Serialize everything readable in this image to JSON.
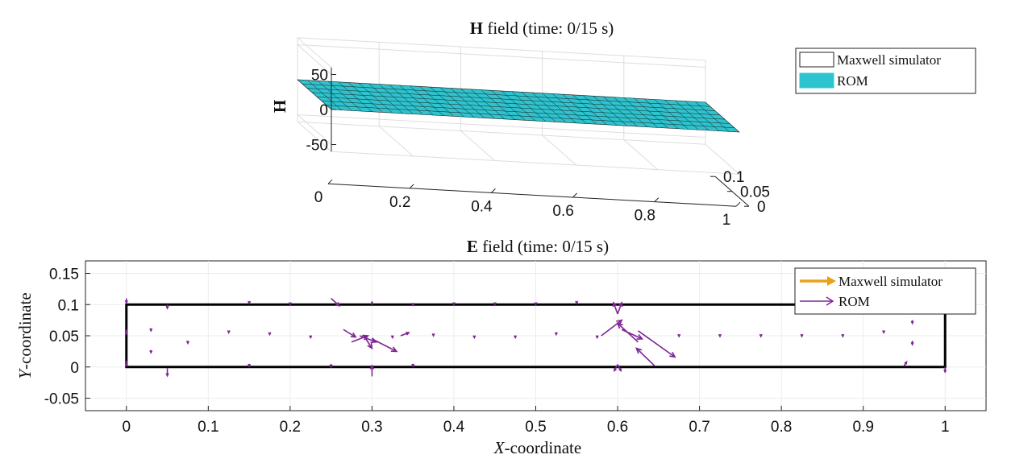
{
  "chart_data": [
    {
      "type": "surface",
      "title": {
        "bold": "H",
        "rest": " field (time: 0/15 s)"
      },
      "zlabel": "H",
      "x_ticks": [
        "0",
        "0.2",
        "0.4",
        "0.6",
        "0.8",
        "1"
      ],
      "y_ticks": [
        "0",
        "0.05",
        "0.1"
      ],
      "z_ticks": [
        "50",
        "0",
        "-50"
      ],
      "xlim": [
        0,
        1
      ],
      "ylim": [
        0,
        0.1
      ],
      "zlim": [
        -60,
        60
      ],
      "surface_value": 0,
      "legend": [
        "Maxwell simulator",
        "ROM"
      ],
      "legend_position": "top-right",
      "colors": {
        "rom_surface": "#2ec4cf",
        "grid": "#dddddd"
      }
    },
    {
      "type": "quiver",
      "title": {
        "bold": "E",
        "rest": " field (time: 0/15 s)"
      },
      "xlabel": {
        "italic": "X",
        "rest": "-coordinate"
      },
      "ylabel": {
        "italic": "Y",
        "rest": "-coordinate"
      },
      "x_ticks": [
        "0",
        "0.1",
        "0.2",
        "0.3",
        "0.4",
        "0.5",
        "0.6",
        "0.7",
        "0.8",
        "0.9",
        "1"
      ],
      "y_ticks": [
        "0.15",
        "0.1",
        "0.05",
        "0",
        "-0.05"
      ],
      "xlim": [
        -0.05,
        1.05
      ],
      "ylim": [
        -0.07,
        0.17
      ],
      "domain_box": {
        "x": [
          0,
          1
        ],
        "y": [
          0,
          0.1
        ]
      },
      "legend": [
        "Maxwell simulator",
        "ROM"
      ],
      "legend_position": "top-right",
      "colors": {
        "maxwell": "#e8a21a",
        "rom": "#7d2594"
      },
      "rom_arrows": [
        [
          0,
          0.11,
          0,
          -0.007
        ],
        [
          0,
          0.06,
          0,
          -0.007
        ],
        [
          0,
          0.01,
          0,
          -0.008
        ],
        [
          0.05,
          0.1,
          0,
          -0.006
        ],
        [
          0.05,
          -0.002,
          0,
          -0.012
        ],
        [
          0.03,
          0.062,
          0,
          -0.004
        ],
        [
          0.03,
          0.027,
          0,
          -0.004
        ],
        [
          0.075,
          0.042,
          0,
          -0.004
        ],
        [
          0.125,
          0.058,
          0,
          -0.003
        ],
        [
          0.15,
          0.105,
          0,
          -0.003
        ],
        [
          0.15,
          0.005,
          0,
          -0.004
        ],
        [
          0.175,
          0.055,
          0,
          -0.003
        ],
        [
          0.2,
          0.102,
          0,
          -0.002
        ],
        [
          0.225,
          0.05,
          0,
          -0.003
        ],
        [
          0.25,
          0.11,
          0.01,
          -0.012
        ],
        [
          0.25,
          0.005,
          0,
          -0.005
        ],
        [
          0.265,
          0.06,
          0.015,
          -0.012
        ],
        [
          0.275,
          0.04,
          0.02,
          0.01
        ],
        [
          0.285,
          0.05,
          0.02,
          -0.01
        ],
        [
          0.29,
          0.05,
          0.01,
          -0.02
        ],
        [
          0.3,
          0.045,
          0.03,
          -0.02
        ],
        [
          0.3,
          0.1,
          0,
          0.004
        ],
        [
          0.3,
          -0.015,
          0,
          0.017
        ],
        [
          0.325,
          0.05,
          0,
          -0.003
        ],
        [
          0.335,
          0.05,
          0.01,
          0.005
        ],
        [
          0.35,
          0.102,
          0,
          -0.003
        ],
        [
          0.35,
          0.005,
          0,
          -0.004
        ],
        [
          0.375,
          0.053,
          0,
          -0.003
        ],
        [
          0.4,
          0.102,
          0,
          -0.002
        ],
        [
          0.425,
          0.05,
          0,
          -0.003
        ],
        [
          0.45,
          0.102,
          0,
          -0.002
        ],
        [
          0.475,
          0.05,
          0,
          -0.003
        ],
        [
          0.5,
          0.102,
          0,
          -0.002
        ],
        [
          0.525,
          0.055,
          0,
          -0.003
        ],
        [
          0.55,
          0.105,
          0,
          -0.003
        ],
        [
          0.575,
          0.05,
          0,
          -0.003
        ],
        [
          0.58,
          0.05,
          0.025,
          0.025
        ],
        [
          0.6,
          0.085,
          -0.005,
          0.018
        ],
        [
          0.6,
          0.085,
          0.005,
          0.018
        ],
        [
          0.6,
          0.004,
          -0.004,
          -0.01
        ],
        [
          0.6,
          0.004,
          0.004,
          -0.01
        ],
        [
          0.605,
          0.06,
          0.025,
          -0.015
        ],
        [
          0.625,
          0.058,
          0.045,
          -0.042
        ],
        [
          0.645,
          0.002,
          -0.022,
          0.028
        ],
        [
          0.625,
          0.04,
          -0.025,
          0.03
        ],
        [
          0.675,
          0.052,
          0,
          -0.003
        ],
        [
          0.725,
          0.052,
          0,
          -0.003
        ],
        [
          0.775,
          0.052,
          0,
          -0.003
        ],
        [
          0.825,
          0.052,
          0,
          -0.003
        ],
        [
          0.85,
          0.102,
          0,
          -0.002
        ],
        [
          0.875,
          0.052,
          0,
          -0.003
        ],
        [
          0.9,
          0.102,
          0,
          -0.002
        ],
        [
          0.925,
          0.058,
          0,
          -0.003
        ],
        [
          0.95,
          0.002,
          0.003,
          0.006
        ],
        [
          0.96,
          0.042,
          0,
          -0.006
        ],
        [
          0.96,
          0.075,
          0,
          -0.005
        ],
        [
          1,
          0.0,
          0,
          -0.008
        ]
      ]
    }
  ]
}
